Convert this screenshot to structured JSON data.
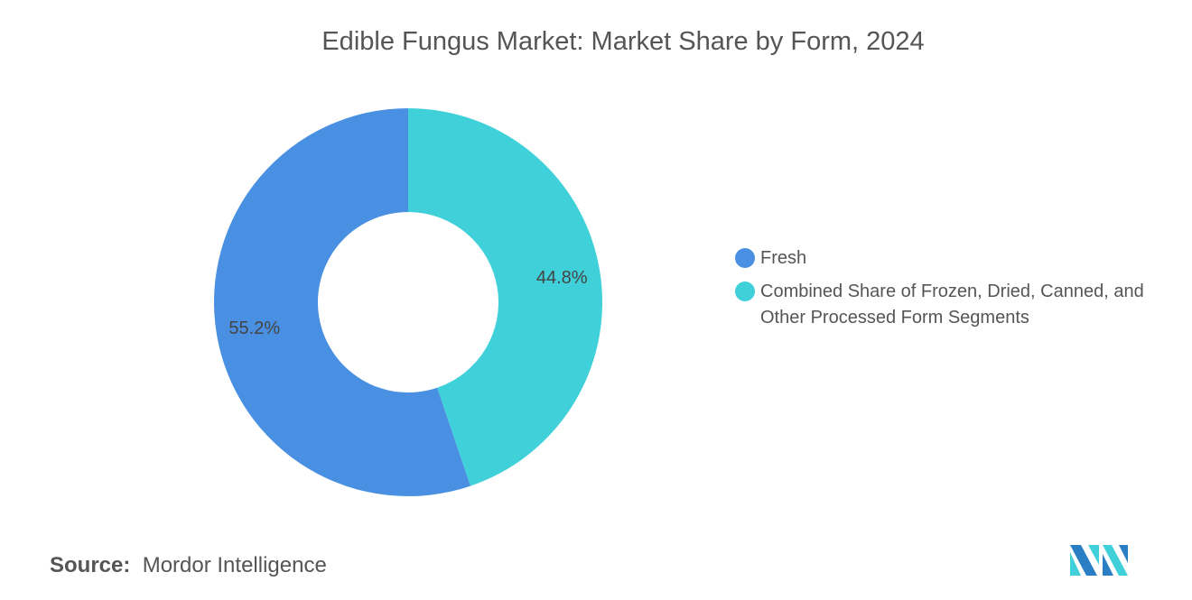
{
  "chart_data": {
    "type": "pie",
    "donut": true,
    "title": "Edible Fungus Market: Market Share by Form, 2024",
    "categories": [
      "Fresh",
      "Combined Share of Frozen, Dried, Canned, and Other Processed Form Segments"
    ],
    "values": [
      55.2,
      44.8
    ],
    "labels": [
      "55.2%",
      "44.8%"
    ],
    "colors": [
      "#4a90e2",
      "#40d0da"
    ],
    "legend_position": "right"
  },
  "legend": [
    {
      "label": "Fresh"
    },
    {
      "label": "Combined Share of Frozen, Dried, Canned, and Other Processed Form Segments"
    }
  ],
  "source": {
    "prefix": "Source:",
    "text": "Mordor Intelligence"
  },
  "logo": {
    "text": "Mordor Intelligence",
    "colors": [
      "#2a7fc4",
      "#40d0da"
    ]
  }
}
